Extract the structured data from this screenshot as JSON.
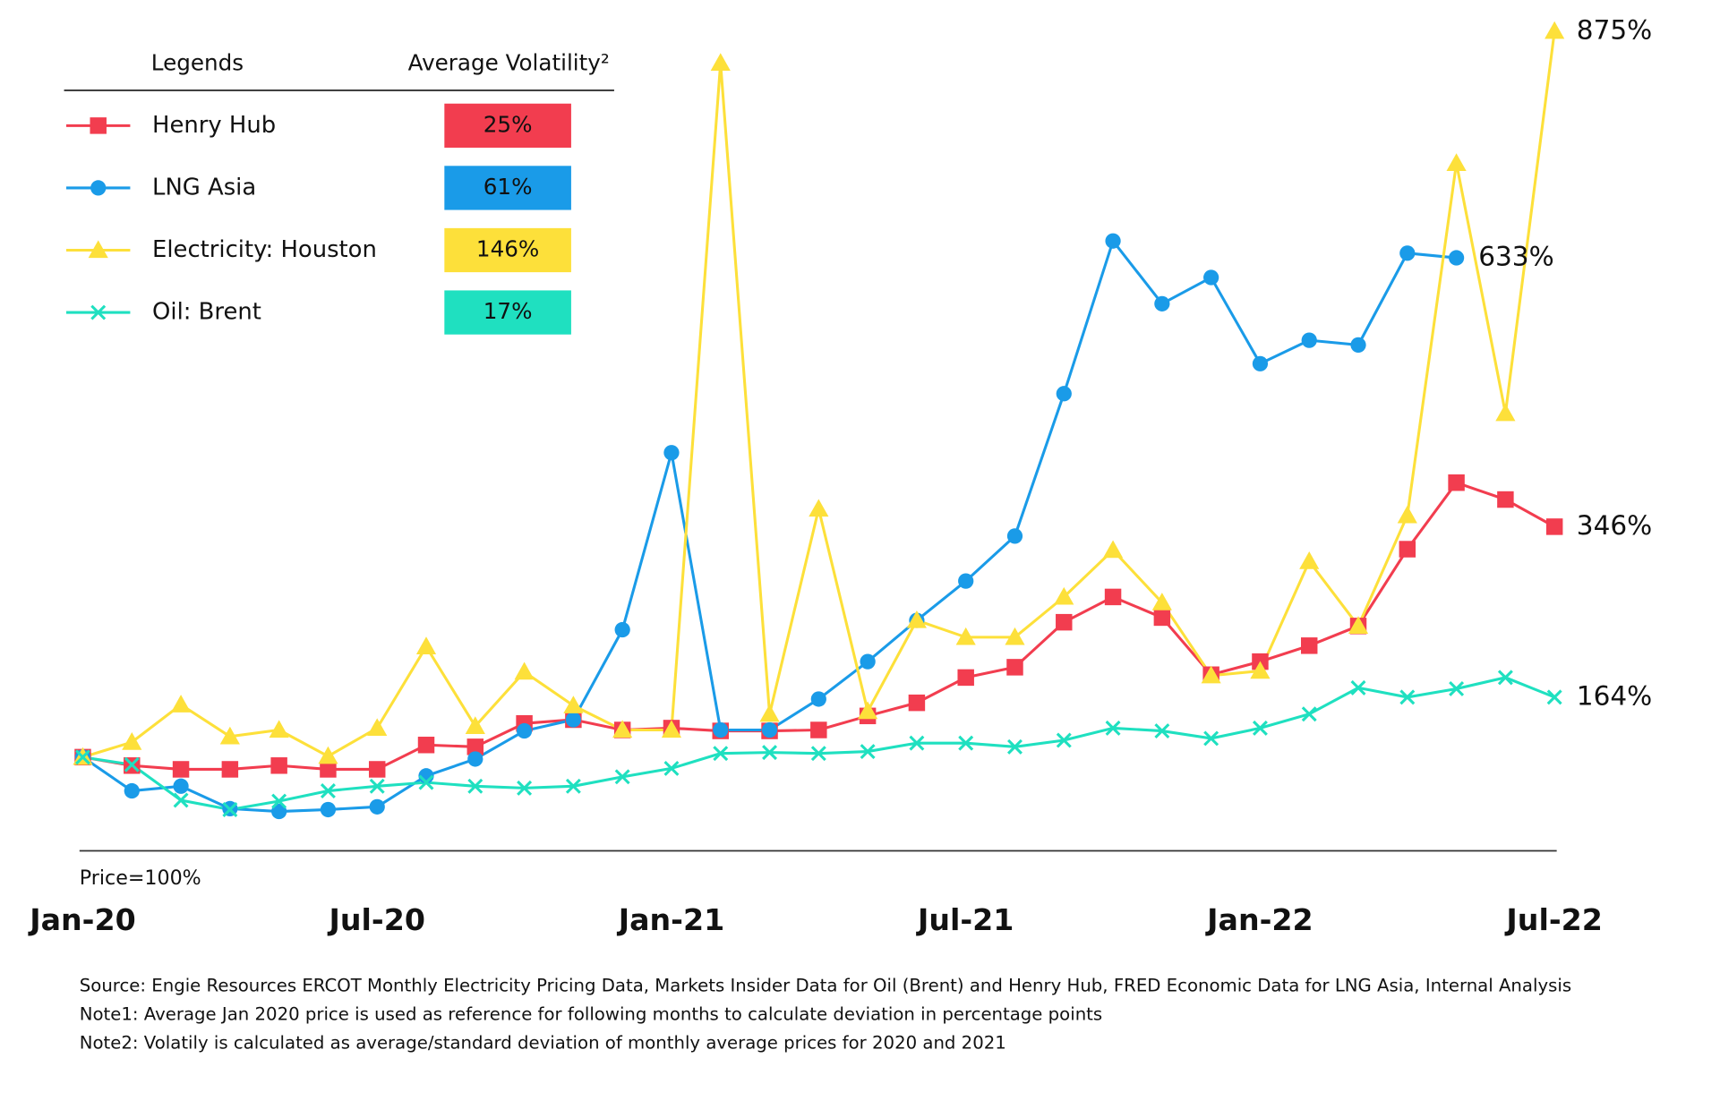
{
  "chart_data": {
    "type": "line",
    "legend_header": "Legends",
    "volatility_header": "Average Volatility²",
    "baseline_label": "Price=100%",
    "categories": [
      "Jan-20",
      null,
      null,
      null,
      null,
      null,
      "Jul-20",
      null,
      null,
      null,
      null,
      null,
      "Jan-21",
      null,
      null,
      null,
      null,
      null,
      "Jul-21",
      null,
      null,
      null,
      null,
      null,
      "Jan-22",
      null,
      null,
      null,
      null,
      null,
      "Jul-22"
    ],
    "ylim": [
      0,
      900
    ],
    "series": [
      {
        "name": "Henry Hub",
        "color": "#f23d4f",
        "marker": "square",
        "volatility": 25,
        "volatility_label": "25%",
        "values": [
          100,
          91,
          87,
          87,
          91,
          87,
          87,
          113,
          111,
          136,
          140,
          129,
          131,
          128,
          128,
          129,
          144,
          158,
          185,
          196,
          244,
          271,
          249,
          188,
          202,
          219,
          240,
          322,
          393,
          375,
          346
        ],
        "value_labels": [
          null,
          null,
          null,
          null,
          null,
          null,
          null,
          null,
          null,
          null,
          null,
          null,
          null,
          null,
          null,
          null,
          null,
          null,
          null,
          null,
          null,
          null,
          null,
          null,
          null,
          null,
          null,
          null,
          null,
          null,
          "346%"
        ]
      },
      {
        "name": "LNG Asia",
        "color": "#1a9be8",
        "marker": "circle",
        "volatility": 61,
        "volatility_label": "61%",
        "values": [
          100,
          64,
          69,
          45,
          42,
          44,
          47,
          80,
          98,
          128,
          140,
          236,
          425,
          129,
          129,
          162,
          202,
          246,
          288,
          336,
          488,
          651,
          584,
          612,
          520,
          545,
          540,
          638,
          633,
          null,
          null
        ],
        "value_labels": [
          null,
          null,
          null,
          null,
          null,
          null,
          null,
          null,
          null,
          null,
          null,
          null,
          null,
          null,
          null,
          null,
          null,
          null,
          null,
          null,
          null,
          null,
          null,
          null,
          null,
          null,
          null,
          null,
          "633%",
          null,
          null
        ]
      },
      {
        "name": "Electricity: Houston",
        "color": "#fde03a",
        "marker": "triangle",
        "volatility": 146,
        "volatility_label": "146%",
        "values": [
          100,
          116,
          156,
          122,
          129,
          101,
          131,
          218,
          133,
          191,
          155,
          129,
          129,
          841,
          146,
          365,
          149,
          246,
          228,
          228,
          271,
          321,
          265,
          187,
          192,
          309,
          240,
          358,
          734,
          467,
          875
        ],
        "value_labels": [
          null,
          null,
          null,
          null,
          null,
          null,
          null,
          null,
          null,
          null,
          null,
          null,
          null,
          null,
          null,
          null,
          null,
          null,
          null,
          null,
          null,
          null,
          null,
          null,
          null,
          null,
          null,
          null,
          null,
          null,
          "875%"
        ]
      },
      {
        "name": "Oil: Brent",
        "color": "#1fe0c0",
        "marker": "x",
        "volatility": 17,
        "volatility_label": "17%",
        "values": [
          100,
          92,
          54,
          44,
          53,
          64,
          69,
          73,
          69,
          67,
          69,
          79,
          88,
          104,
          105,
          104,
          106,
          115,
          115,
          111,
          118,
          131,
          128,
          120,
          131,
          146,
          174,
          164,
          173,
          185,
          164
        ],
        "value_labels": [
          null,
          null,
          null,
          null,
          null,
          null,
          null,
          null,
          null,
          null,
          null,
          null,
          null,
          null,
          null,
          null,
          null,
          null,
          null,
          null,
          null,
          null,
          null,
          null,
          null,
          null,
          null,
          null,
          null,
          null,
          "164%"
        ]
      }
    ],
    "notes": [
      "Source: Engie Resources ERCOT Monthly Electricity Pricing Data, Markets Insider Data for Oil (Brent) and Henry Hub, FRED Economic Data for LNG Asia, Internal Analysis",
      "Note1: Average Jan 2020 price is used as reference for following months to calculate deviation in percentage points",
      "Note2: Volatily is calculated as average/standard deviation of monthly average prices for 2020 and 2021"
    ]
  }
}
